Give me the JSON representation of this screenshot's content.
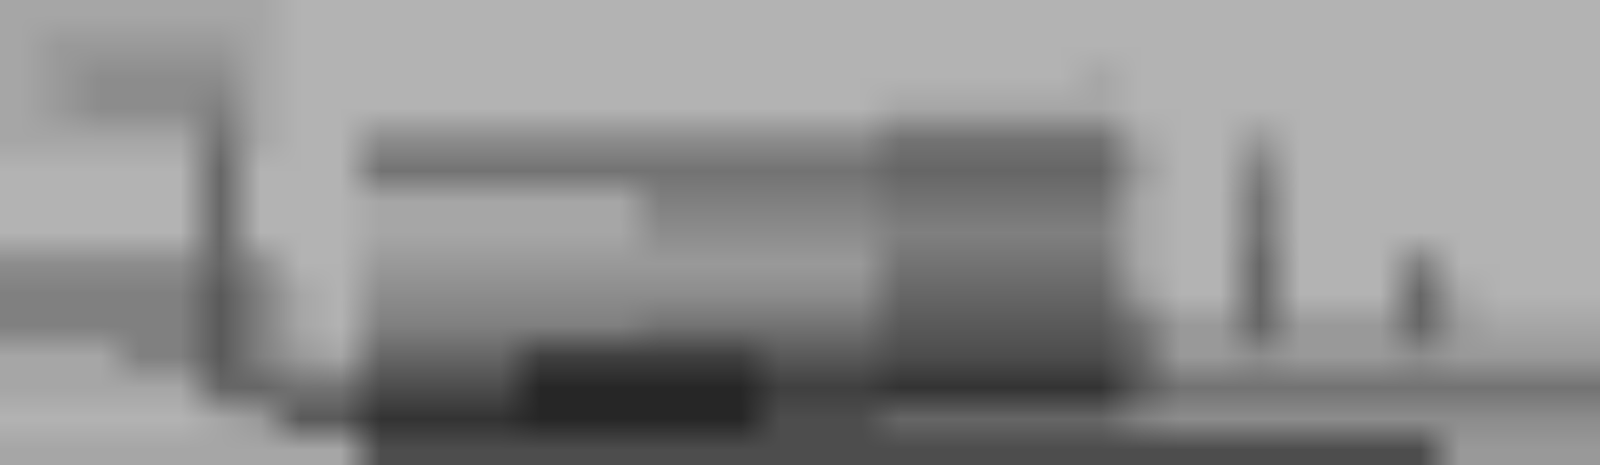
{
  "chart_data": {
    "type": "heatmap",
    "tick_labels": false,
    "grid": false,
    "zlim": [
      0,
      10
    ],
    "z": [
      [
        3.5,
        3.5,
        3.5,
        3.5,
        3.5,
        3.5,
        3.5,
        3,
        3,
        3,
        3,
        3,
        3,
        3,
        3,
        3,
        3,
        3,
        3,
        3,
        3,
        3,
        3,
        3,
        3,
        3,
        3,
        3,
        3,
        3,
        3,
        3,
        3,
        3,
        3,
        3,
        3,
        3,
        3,
        3
      ],
      [
        3.5,
        4,
        4,
        4,
        4,
        4,
        3.5,
        3,
        3,
        3,
        3,
        3,
        3,
        3,
        3,
        3,
        3,
        3,
        3,
        3,
        3,
        3,
        3,
        3,
        3,
        3,
        3,
        3,
        3,
        3,
        3,
        3,
        3,
        3,
        3,
        3,
        3,
        3,
        3,
        3
      ],
      [
        3.5,
        4,
        4.5,
        4.5,
        4.5,
        4.5,
        3.5,
        3,
        3,
        3,
        3,
        3,
        3,
        3,
        3,
        3,
        3,
        3,
        3,
        3,
        3,
        3,
        3,
        3,
        3,
        3,
        3,
        3.5,
        3,
        3,
        3,
        3,
        3,
        3,
        3,
        3,
        3,
        3,
        3,
        3
      ],
      [
        3.5,
        4,
        4.5,
        4.5,
        4.5,
        5,
        3.5,
        3,
        3,
        3,
        3,
        3,
        3,
        3,
        3,
        3,
        3,
        3,
        3,
        3,
        3,
        3,
        3.5,
        3.5,
        3.5,
        3.5,
        3.5,
        3.5,
        3,
        3,
        3,
        3,
        3,
        3,
        3,
        3,
        3,
        3,
        3,
        3
      ],
      [
        3.5,
        3.5,
        3.5,
        3.5,
        3.5,
        5.5,
        3.5,
        3,
        3,
        4.5,
        4.5,
        4.5,
        4.5,
        4.5,
        4.5,
        4.5,
        4.5,
        4.5,
        4.5,
        4.5,
        4.5,
        4.5,
        5.5,
        5.5,
        5.5,
        5.5,
        5.5,
        5.5,
        3.5,
        3,
        3,
        4,
        3,
        3,
        3,
        3,
        3,
        3,
        3,
        3
      ],
      [
        3,
        3,
        3,
        3,
        3,
        6,
        3,
        3,
        3,
        5.5,
        5.5,
        5.5,
        5.5,
        5.5,
        5.5,
        5.5,
        5.5,
        5.5,
        5.5,
        5.5,
        5.5,
        5.5,
        6,
        6,
        6,
        6,
        6,
        6,
        4,
        3,
        3,
        5,
        3,
        3,
        3,
        3,
        3,
        3,
        3,
        3
      ],
      [
        3,
        3,
        3,
        3,
        3,
        6,
        3,
        3,
        3,
        3.5,
        3.5,
        3.5,
        3.5,
        3.5,
        3.5,
        3.5,
        5,
        5,
        5,
        5,
        5,
        5,
        5.5,
        5.5,
        5.5,
        5.5,
        5.5,
        5.5,
        3.5,
        3,
        3,
        5.5,
        3,
        3,
        3,
        3,
        3,
        3,
        3,
        3
      ],
      [
        3,
        3,
        3,
        3,
        3,
        6,
        3,
        3,
        3,
        3.5,
        3.5,
        3.5,
        3.5,
        3.5,
        3.5,
        3.5,
        4.5,
        4.5,
        4.5,
        4.5,
        4.5,
        4.5,
        5,
        5,
        5,
        5,
        5,
        5,
        3.5,
        3,
        3,
        5.5,
        3,
        3,
        3,
        3,
        3,
        3,
        3,
        3
      ],
      [
        4.5,
        4.5,
        4.5,
        4.5,
        4.5,
        6,
        4.5,
        3,
        3,
        4,
        4,
        4,
        4,
        4,
        4,
        4,
        4,
        4,
        4,
        4,
        4,
        4,
        5.5,
        5.5,
        5.5,
        5.5,
        5.5,
        5.5,
        3.5,
        3,
        3,
        6,
        3,
        3,
        3,
        5,
        3,
        3,
        3,
        3
      ],
      [
        5,
        5,
        5,
        5,
        5,
        6.5,
        5,
        3.5,
        3,
        4.5,
        4.5,
        4.5,
        4.5,
        4.5,
        4.5,
        4.5,
        4.5,
        4.5,
        4.5,
        4.5,
        4.5,
        4.5,
        6,
        6,
        6,
        6,
        6,
        6,
        4,
        3,
        3,
        6,
        3,
        3,
        3,
        6,
        3.5,
        3,
        3,
        3
      ],
      [
        5,
        5,
        5,
        5,
        5,
        6.5,
        5,
        3.5,
        3,
        5,
        5,
        5,
        5,
        5,
        5,
        5,
        5.5,
        5.5,
        5.5,
        5.5,
        5.5,
        5.5,
        6.5,
        6.5,
        6.5,
        6.5,
        6.5,
        6.5,
        5.5,
        4,
        4,
        6,
        4,
        4,
        4,
        6,
        4,
        3.5,
        3.5,
        3.5
      ],
      [
        3.5,
        3.5,
        3.5,
        5,
        5,
        6.5,
        5,
        4,
        3.5,
        6,
        6,
        6,
        6,
        7.5,
        7.5,
        7.5,
        7.5,
        7.5,
        7.5,
        6.5,
        6.5,
        6.5,
        7,
        7,
        7,
        7,
        7,
        7,
        6,
        4,
        4,
        4.5,
        4,
        4,
        4,
        4.5,
        4,
        4,
        4,
        4
      ],
      [
        3.5,
        3.5,
        3.5,
        3.5,
        3.5,
        6,
        6,
        5.5,
        5.5,
        7,
        7,
        7,
        7,
        8.5,
        8.5,
        8.5,
        8.5,
        8.5,
        8.5,
        7.5,
        7.5,
        7.5,
        8,
        8,
        8,
        8,
        8,
        8,
        6.5,
        5.5,
        5.5,
        5.5,
        5.5,
        5.5,
        5.5,
        5.5,
        5.5,
        5.5,
        5.5,
        5.5
      ],
      [
        3,
        3,
        3,
        3,
        3,
        3.5,
        4,
        6.5,
        6.5,
        8,
        8,
        8,
        8,
        8.5,
        8.5,
        8.5,
        8.5,
        8.5,
        8.5,
        7,
        7,
        7,
        6,
        6,
        6,
        6,
        6,
        6,
        5,
        4.5,
        4.5,
        4.5,
        4.5,
        4.5,
        4.5,
        4.5,
        4.5,
        4.5,
        4.5,
        4.5
      ],
      [
        3.5,
        3.5,
        3.5,
        3.5,
        3.5,
        3.5,
        3.5,
        3.5,
        3.5,
        7,
        7,
        7,
        7,
        7,
        7,
        7,
        7,
        7,
        7,
        7,
        7,
        7,
        7,
        7,
        7,
        7,
        7,
        7,
        7,
        7,
        7,
        7,
        7,
        7,
        7,
        7,
        4,
        4,
        4,
        4
      ]
    ]
  }
}
